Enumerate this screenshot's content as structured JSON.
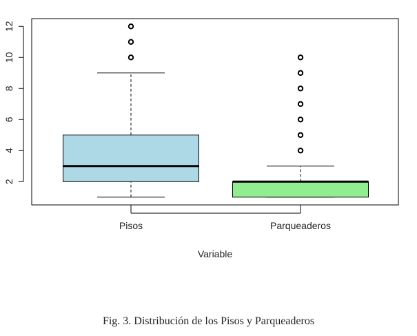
{
  "chart_data": {
    "type": "boxplot",
    "xlabel": "Variable",
    "ylabel": "",
    "ylim": [
      0.5,
      12.5
    ],
    "yticks": [
      2,
      4,
      6,
      8,
      10,
      12
    ],
    "categories": [
      "Pisos",
      "Parqueaderos"
    ],
    "boxes": [
      {
        "category": "Pisos",
        "color": "#add8e6",
        "whisker_low": 1,
        "q1": 2,
        "median": 3,
        "q3": 5,
        "whisker_high": 9,
        "outliers": [
          10,
          11,
          12
        ]
      },
      {
        "category": "Parqueaderos",
        "color": "#90ee90",
        "whisker_low": 1,
        "q1": 1,
        "median": 2,
        "q3": 2,
        "whisker_high": 3,
        "outliers": [
          4,
          5,
          6,
          7,
          8,
          9,
          10
        ]
      }
    ]
  },
  "caption": "Fig. 3.  Distribución de los Pisos y Parqueaderos"
}
